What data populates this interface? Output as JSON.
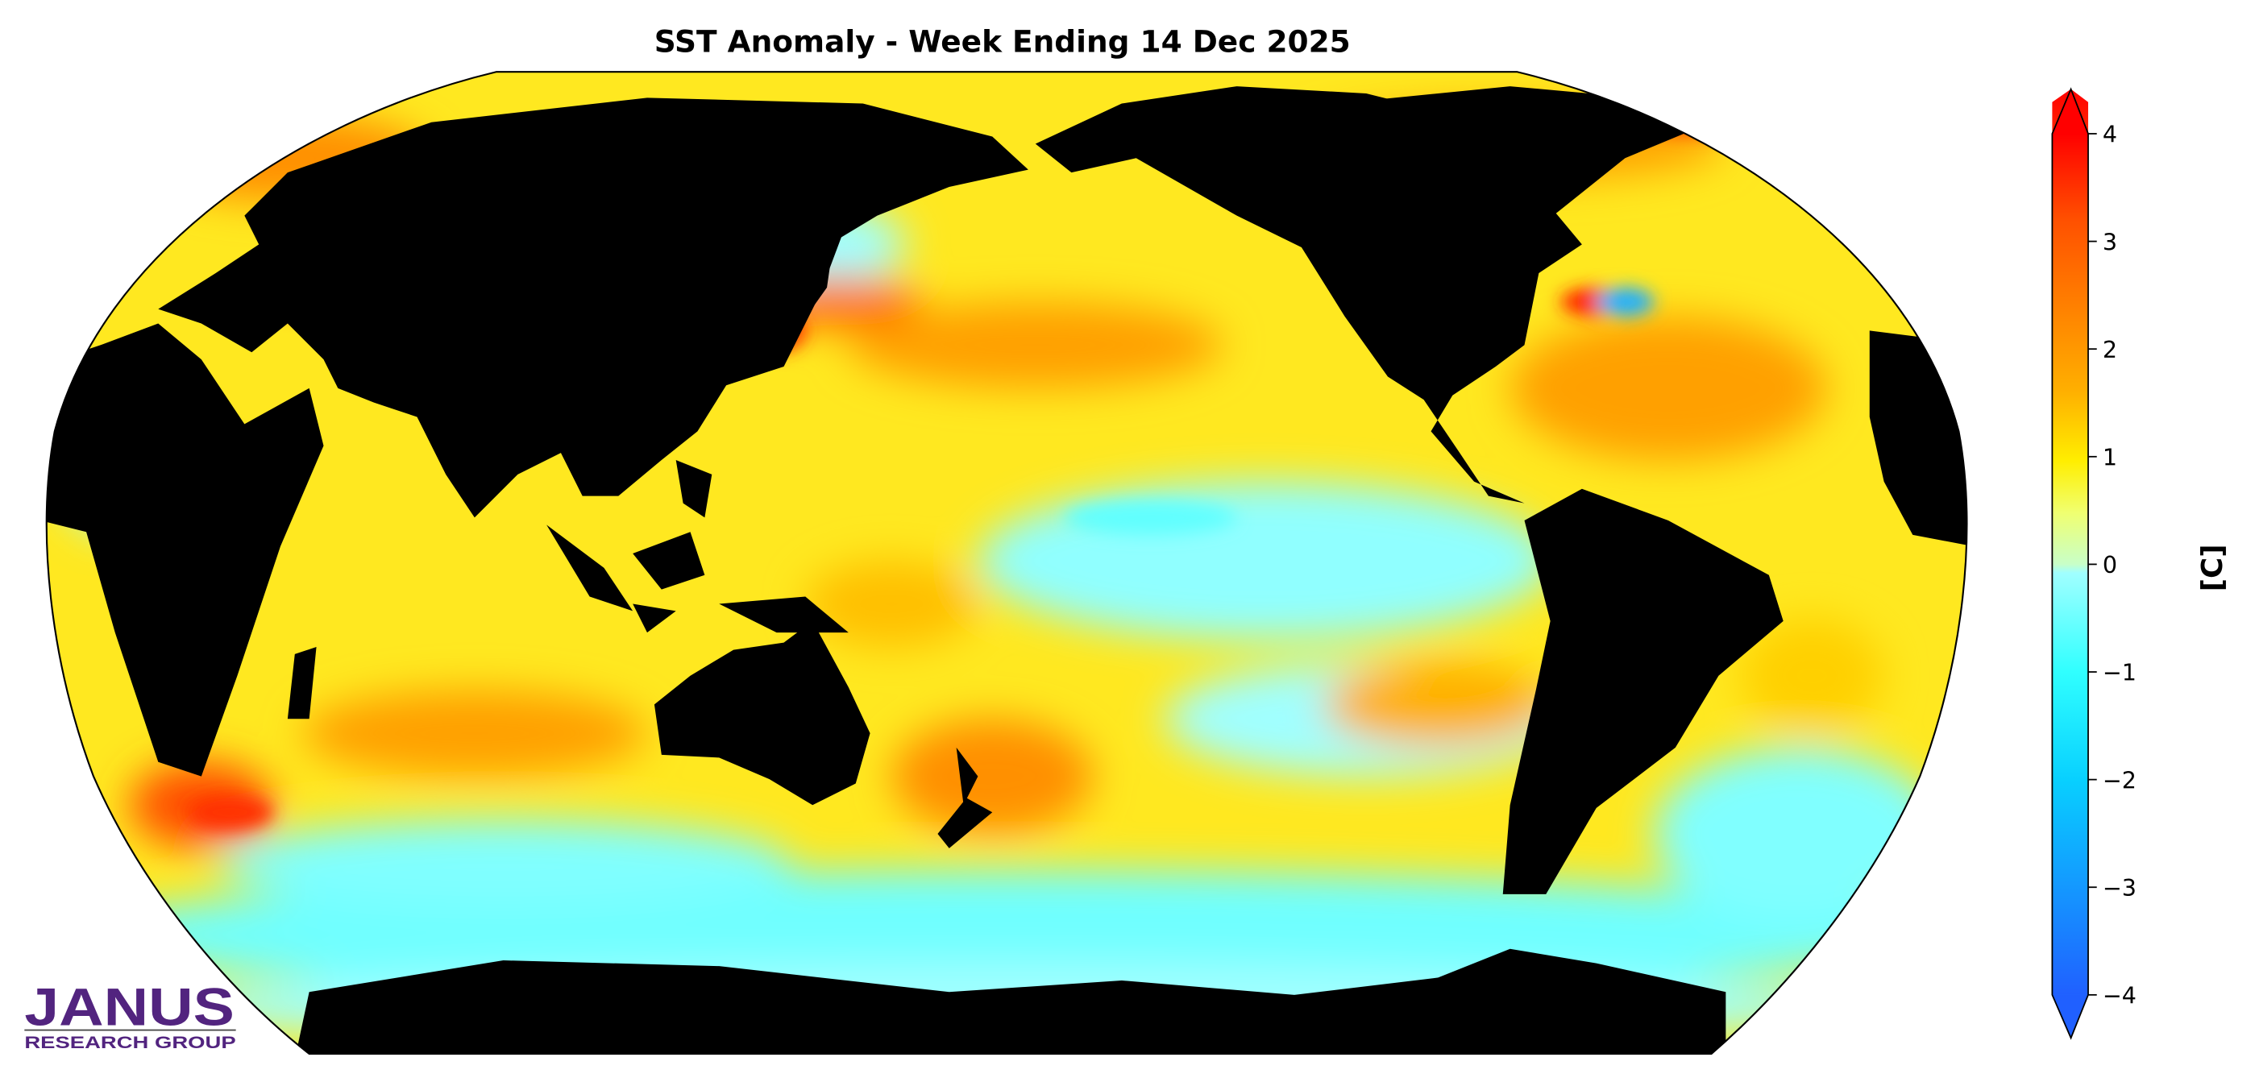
{
  "chart_data": {
    "type": "heatmap",
    "title": "SST Anomaly - Week Ending 14 Dec 2025",
    "projection": "Robinson, Pacific-centered",
    "colorbar": {
      "label": "[C]",
      "range": [
        -4,
        4
      ],
      "extend": "both",
      "ticks": [
        4,
        3,
        2,
        1,
        0,
        -1,
        -2,
        -3,
        -4
      ],
      "tick_labels": [
        "4",
        "3",
        "2",
        "1",
        "0",
        "−1",
        "−2",
        "−3",
        "−4"
      ],
      "colors": [
        "#2060ff",
        "#2090ff",
        "#20b0ff",
        "#08d0ff",
        "#20ffff",
        "#60ffff",
        "#a0ffff",
        "#c8ffc8",
        "#e8ff90",
        "#ffff40",
        "#ffe800",
        "#ffc800",
        "#ffa000",
        "#ff8000",
        "#ff6000",
        "#ff3000",
        "#ff0000"
      ]
    },
    "land_color": "#000000"
  },
  "logo": {
    "name": "JANUS",
    "subtitle": "RESEARCH GROUP",
    "color": "#52247f"
  }
}
